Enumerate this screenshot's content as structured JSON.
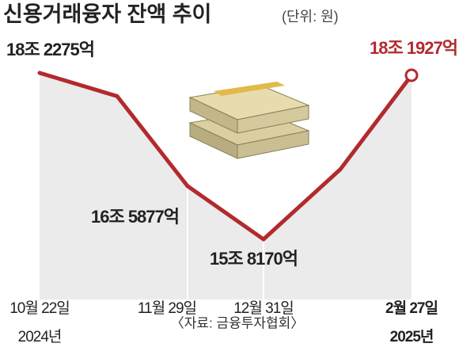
{
  "chart_data": {
    "type": "line",
    "title": "신용거래융자 잔액 추이",
    "unit_note": "(단위: 원)",
    "source": "〈자료: 금융투자협회〉",
    "categories": [
      "10월 22일",
      null,
      "11월 29일",
      "12월 31일",
      null,
      "2월 27일"
    ],
    "x_sublabels": [
      "2024년",
      null,
      null,
      null,
      null,
      "2025년"
    ],
    "series": [
      {
        "name": "신용거래융자 잔액",
        "color": "#b22a2e",
        "values": [
          182275,
          178900,
          165877,
          158170,
          168300,
          181927
        ],
        "value_labels": [
          "18조 2275억",
          null,
          "16조 5877억",
          "15조 8170억",
          null,
          "18조 1927억"
        ]
      }
    ],
    "highlight_color": "#b22a2e",
    "area_color": "#ebebeb"
  }
}
